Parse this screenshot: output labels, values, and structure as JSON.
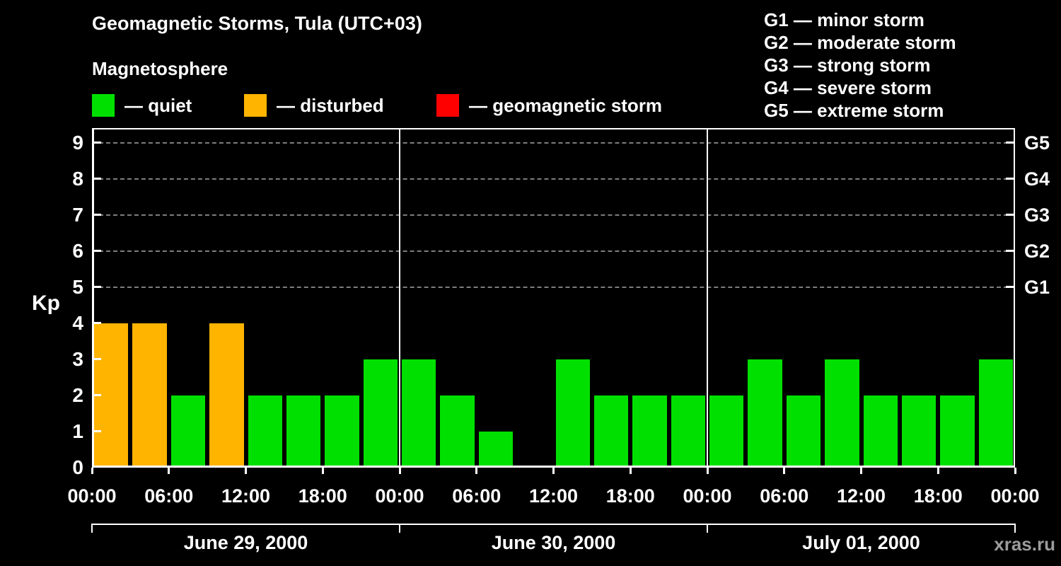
{
  "title": "Geomagnetic Storms, Tula (UTC+03)",
  "subtitle": "Magnetosphere",
  "legend": [
    {
      "name": "quiet",
      "label": "— quiet",
      "color": "#00e000"
    },
    {
      "name": "disturbed",
      "label": "— disturbed",
      "color": "#ffb400"
    },
    {
      "name": "storm",
      "label": "— geomagnetic storm",
      "color": "#ff0000"
    }
  ],
  "storm_scale_legend": [
    {
      "label": "G1 — minor storm"
    },
    {
      "label": "G2 — moderate storm"
    },
    {
      "label": "G3 — strong storm"
    },
    {
      "label": "G4 — severe storm"
    },
    {
      "label": "G5 — extreme storm"
    }
  ],
  "watermark": "xras.ru",
  "chart_data": {
    "type": "bar",
    "title": "Geomagnetic Storms, Tula (UTC+03)",
    "ylabel": "Kp",
    "ylim": [
      0,
      9.4
    ],
    "y_ticks": [
      0,
      1,
      2,
      3,
      4,
      5,
      6,
      7,
      8,
      9
    ],
    "grid": "dashed horizontal lines at Kp 5-9 (G1-G5 levels)",
    "legend_position": "top",
    "grid_levels": [
      {
        "kp": 5,
        "label": "G1"
      },
      {
        "kp": 6,
        "label": "G2"
      },
      {
        "kp": 7,
        "label": "G3"
      },
      {
        "kp": 8,
        "label": "G4"
      },
      {
        "kp": 9,
        "label": "G5"
      }
    ],
    "x_tick_labels": [
      "00:00",
      "06:00",
      "12:00",
      "18:00",
      "00:00",
      "06:00",
      "12:00",
      "18:00",
      "00:00",
      "06:00",
      "12:00",
      "18:00",
      "00:00"
    ],
    "bar_interval_hours": 3,
    "colors": {
      "quiet": "#00e000",
      "disturbed": "#ffb400",
      "storm": "#ff0000"
    },
    "days": [
      {
        "date": "June 29, 2000",
        "kp_values": [
          4,
          4,
          2,
          4,
          2,
          2,
          2,
          3
        ],
        "states": [
          "disturbed",
          "disturbed",
          "quiet",
          "disturbed",
          "quiet",
          "quiet",
          "quiet",
          "quiet"
        ]
      },
      {
        "date": "June 30, 2000",
        "kp_values": [
          3,
          2,
          1,
          0,
          3,
          2,
          2,
          2
        ],
        "states": [
          "quiet",
          "quiet",
          "quiet",
          "quiet",
          "quiet",
          "quiet",
          "quiet",
          "quiet"
        ]
      },
      {
        "date": "July 01, 2000",
        "kp_values": [
          2,
          3,
          2,
          3,
          2,
          2,
          2,
          3
        ],
        "states": [
          "quiet",
          "quiet",
          "quiet",
          "quiet",
          "quiet",
          "quiet",
          "quiet",
          "quiet"
        ]
      }
    ]
  }
}
